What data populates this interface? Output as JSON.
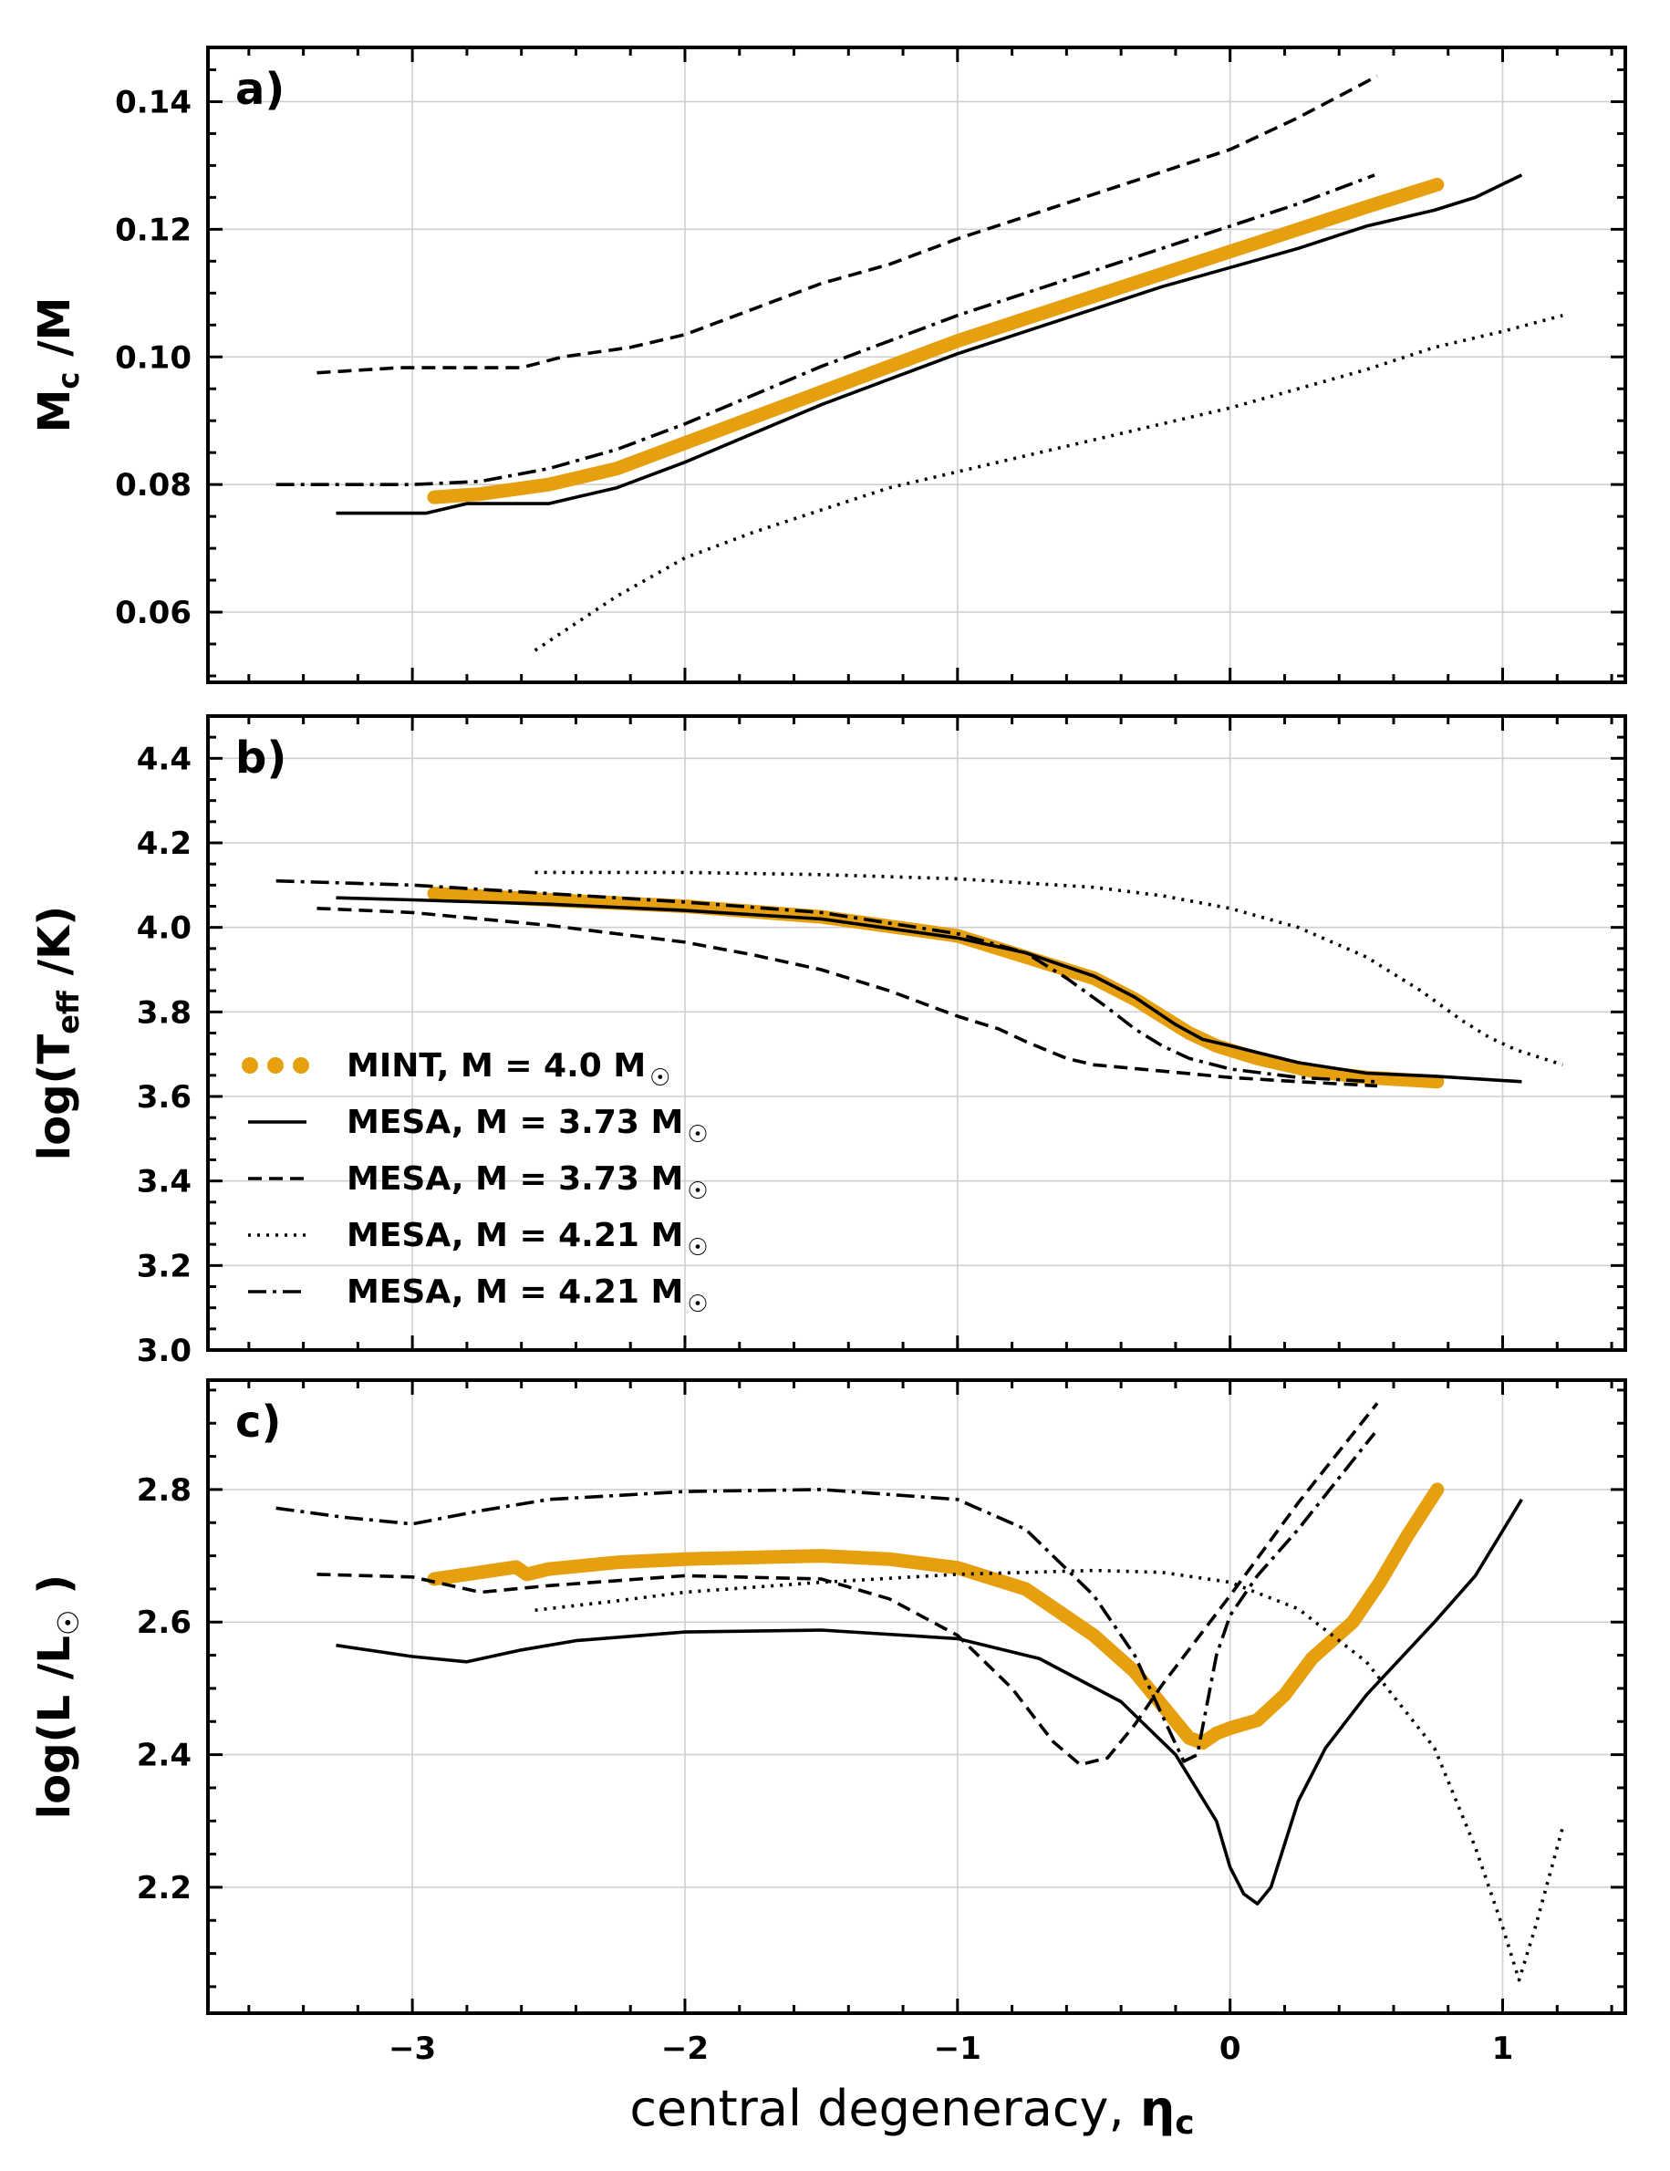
{
  "figure": {
    "xlabel": "central degeneracy, ",
    "xlabel_symbol": "η",
    "xlabel_sub": "c"
  },
  "chart_data": [
    {
      "type": "line",
      "id": "a",
      "panel_label": "a)",
      "ylabel": {
        "main": "M",
        "sub": "c",
        "tail": " /M"
      },
      "xlim": [
        -3.75,
        1.45
      ],
      "ylim": [
        0.049,
        0.1485
      ],
      "xticks": [
        -3,
        -2,
        -1,
        0,
        1
      ],
      "xticklabels": [
        "−3",
        "−2",
        "−1",
        "0",
        "1"
      ],
      "show_xticklabels": false,
      "yticks": [
        0.06,
        0.08,
        0.1,
        0.12,
        0.14
      ],
      "yticklabels": [
        "0.06",
        "0.08",
        "0.10",
        "0.12",
        "0.14"
      ],
      "grid": true,
      "series": [
        {
          "style": "mint",
          "x": [
            -2.92,
            -2.75,
            -2.5,
            -2.25,
            -2.0,
            -1.75,
            -1.5,
            -1.25,
            -1.0,
            -0.75,
            -0.5,
            -0.25,
            0.0,
            0.25,
            0.5,
            0.76
          ],
          "y": [
            0.078,
            0.0785,
            0.08,
            0.0825,
            0.0865,
            0.0905,
            0.0945,
            0.0985,
            0.1025,
            0.106,
            0.1095,
            0.113,
            0.1165,
            0.12,
            0.1235,
            0.127
          ]
        },
        {
          "style": "solid",
          "x": [
            -3.28,
            -2.95,
            -2.8,
            -2.5,
            -2.25,
            -2.0,
            -1.75,
            -1.5,
            -1.25,
            -1.0,
            -0.75,
            -0.5,
            -0.25,
            0.0,
            0.25,
            0.5,
            0.75,
            0.9,
            1.07
          ],
          "y": [
            0.0755,
            0.0755,
            0.077,
            0.077,
            0.0795,
            0.0835,
            0.088,
            0.0925,
            0.0965,
            0.1005,
            0.104,
            0.1075,
            0.111,
            0.114,
            0.117,
            0.1205,
            0.123,
            0.125,
            0.1285
          ]
        },
        {
          "style": "dashed",
          "x": [
            -3.35,
            -3.05,
            -2.6,
            -2.45,
            -2.2,
            -2.0,
            -1.75,
            -1.5,
            -1.25,
            -1.0,
            -0.75,
            -0.5,
            -0.25,
            0.0,
            0.25,
            0.54
          ],
          "y": [
            0.0975,
            0.0983,
            0.0983,
            0.1,
            0.1015,
            0.1035,
            0.1075,
            0.1115,
            0.1145,
            0.1185,
            0.122,
            0.1255,
            0.129,
            0.1325,
            0.1375,
            0.144
          ]
        },
        {
          "style": "dotted",
          "x": [
            -2.55,
            -2.25,
            -2.0,
            -1.75,
            -1.5,
            -1.25,
            -1.0,
            -0.75,
            -0.5,
            -0.25,
            0.0,
            0.25,
            0.5,
            0.75,
            1.0,
            1.22
          ],
          "y": [
            0.054,
            0.0625,
            0.0685,
            0.0725,
            0.076,
            0.0795,
            0.082,
            0.0845,
            0.087,
            0.0895,
            0.092,
            0.095,
            0.098,
            0.1015,
            0.104,
            0.1065
          ]
        },
        {
          "style": "dashdot",
          "x": [
            -3.5,
            -3.0,
            -2.75,
            -2.5,
            -2.25,
            -2.0,
            -1.75,
            -1.5,
            -1.25,
            -1.0,
            -0.75,
            -0.5,
            -0.25,
            0.0,
            0.25,
            0.53
          ],
          "y": [
            0.08,
            0.08,
            0.0805,
            0.0825,
            0.0855,
            0.0895,
            0.094,
            0.0985,
            0.1025,
            0.1065,
            0.11,
            0.1135,
            0.117,
            0.1205,
            0.124,
            0.1285
          ]
        }
      ]
    },
    {
      "type": "line",
      "id": "b",
      "panel_label": "b)",
      "ylabel": {
        "main": "log(T",
        "sub": "eff",
        "tail": " /K)"
      },
      "xlim": [
        -3.75,
        1.45
      ],
      "ylim": [
        3.0,
        4.5
      ],
      "xticks": [
        -3,
        -2,
        -1,
        0,
        1
      ],
      "xticklabels": [
        "−3",
        "−2",
        "−1",
        "0",
        "1"
      ],
      "show_xticklabels": false,
      "yticks": [
        3.0,
        3.2,
        3.4,
        3.6,
        3.8,
        4.0,
        4.2,
        4.4
      ],
      "yticklabels": [
        "3.0",
        "3.2",
        "3.4",
        "3.6",
        "3.8",
        "4.0",
        "4.2",
        "4.4"
      ],
      "grid": true,
      "legend": {
        "position": "lower-left",
        "entries": [
          {
            "style": "mint",
            "label": "MINT, M = 4.0 M",
            "sym": "☉"
          },
          {
            "style": "solid",
            "label": "MESA, M = 3.73 M",
            "sym": "☉"
          },
          {
            "style": "dashed",
            "label": "MESA, M = 3.73 M",
            "sym": "☉"
          },
          {
            "style": "dotted",
            "label": "MESA, M = 4.21 M",
            "sym": "☉"
          },
          {
            "style": "dashdot",
            "label": "MESA, M = 4.21 M",
            "sym": "☉"
          }
        ]
      },
      "series": [
        {
          "style": "mint",
          "x": [
            -2.92,
            -2.5,
            -2.0,
            -1.5,
            -1.0,
            -0.75,
            -0.5,
            -0.35,
            -0.25,
            -0.15,
            -0.05,
            0.1,
            0.3,
            0.5,
            0.76
          ],
          "y": [
            4.08,
            4.065,
            4.05,
            4.025,
            3.98,
            3.93,
            3.88,
            3.83,
            3.79,
            3.75,
            3.72,
            3.69,
            3.66,
            3.645,
            3.635
          ]
        },
        {
          "style": "solid",
          "x": [
            -3.28,
            -3.0,
            -2.5,
            -2.0,
            -1.5,
            -1.0,
            -0.75,
            -0.5,
            -0.35,
            -0.2,
            -0.1,
            0.0,
            0.25,
            0.5,
            0.75,
            1.07
          ],
          "y": [
            4.07,
            4.065,
            4.055,
            4.04,
            4.02,
            3.975,
            3.94,
            3.885,
            3.835,
            3.77,
            3.735,
            3.72,
            3.68,
            3.655,
            3.648,
            3.635
          ]
        },
        {
          "style": "dashed",
          "x": [
            -3.35,
            -3.0,
            -2.5,
            -2.0,
            -1.75,
            -1.5,
            -1.25,
            -1.0,
            -0.85,
            -0.75,
            -0.6,
            -0.5,
            -0.25,
            0.0,
            0.25,
            0.54
          ],
          "y": [
            4.045,
            4.035,
            4.005,
            3.965,
            3.935,
            3.9,
            3.85,
            3.79,
            3.76,
            3.73,
            3.69,
            3.675,
            3.66,
            3.645,
            3.635,
            3.625
          ]
        },
        {
          "style": "dotted",
          "x": [
            -2.55,
            -2.0,
            -1.5,
            -1.0,
            -0.5,
            -0.25,
            0.0,
            0.25,
            0.5,
            0.7,
            0.85,
            0.95,
            1.05,
            1.22
          ],
          "y": [
            4.13,
            4.13,
            4.125,
            4.115,
            4.095,
            4.075,
            4.045,
            4.0,
            3.93,
            3.85,
            3.78,
            3.74,
            3.71,
            3.675
          ]
        },
        {
          "style": "dashdot",
          "x": [
            -3.5,
            -3.0,
            -2.5,
            -2.0,
            -1.5,
            -1.0,
            -0.75,
            -0.6,
            -0.45,
            -0.35,
            -0.25,
            -0.15,
            0.0,
            0.25,
            0.53
          ],
          "y": [
            4.11,
            4.1,
            4.08,
            4.06,
            4.035,
            3.985,
            3.94,
            3.88,
            3.81,
            3.76,
            3.72,
            3.69,
            3.665,
            3.645,
            3.635
          ]
        }
      ]
    },
    {
      "type": "line",
      "id": "c",
      "panel_label": "c)",
      "ylabel": {
        "main": "log(L /L",
        "sym": "☉",
        "tail": " )"
      },
      "xlim": [
        -3.75,
        1.45
      ],
      "ylim": [
        2.01,
        2.965
      ],
      "xticks": [
        -3,
        -2,
        -1,
        0,
        1
      ],
      "xticklabels": [
        "−3",
        "−2",
        "−1",
        "0",
        "1"
      ],
      "show_xticklabels": true,
      "yticks": [
        2.2,
        2.4,
        2.6,
        2.8
      ],
      "yticklabels": [
        "2.2",
        "2.4",
        "2.6",
        "2.8"
      ],
      "grid": true,
      "series": [
        {
          "style": "mint",
          "x": [
            -2.92,
            -2.75,
            -2.62,
            -2.58,
            -2.5,
            -2.25,
            -2.0,
            -1.5,
            -1.25,
            -1.0,
            -0.75,
            -0.5,
            -0.35,
            -0.25,
            -0.15,
            -0.1,
            -0.05,
            0.0,
            0.1,
            0.2,
            0.3,
            0.45,
            0.55,
            0.65,
            0.76
          ],
          "y": [
            2.665,
            2.675,
            2.683,
            2.672,
            2.68,
            2.69,
            2.695,
            2.7,
            2.695,
            2.682,
            2.65,
            2.58,
            2.525,
            2.475,
            2.425,
            2.418,
            2.432,
            2.44,
            2.452,
            2.49,
            2.545,
            2.6,
            2.66,
            2.73,
            2.8
          ]
        },
        {
          "style": "solid",
          "x": [
            -3.28,
            -3.0,
            -2.8,
            -2.6,
            -2.4,
            -2.0,
            -1.5,
            -1.0,
            -0.7,
            -0.4,
            -0.2,
            -0.05,
            0.0,
            0.05,
            0.1,
            0.15,
            0.25,
            0.35,
            0.5,
            0.75,
            0.9,
            1.07
          ],
          "y": [
            2.565,
            2.548,
            2.54,
            2.558,
            2.572,
            2.585,
            2.588,
            2.575,
            2.545,
            2.48,
            2.4,
            2.3,
            2.23,
            2.19,
            2.175,
            2.2,
            2.33,
            2.41,
            2.49,
            2.6,
            2.67,
            2.785
          ]
        },
        {
          "style": "dashed",
          "x": [
            -3.35,
            -3.0,
            -2.75,
            -2.5,
            -2.0,
            -1.5,
            -1.25,
            -1.0,
            -0.8,
            -0.65,
            -0.55,
            -0.45,
            -0.35,
            -0.25,
            0.0,
            0.25,
            0.54
          ],
          "y": [
            2.672,
            2.668,
            2.645,
            2.655,
            2.67,
            2.665,
            2.635,
            2.58,
            2.5,
            2.42,
            2.385,
            2.395,
            2.445,
            2.505,
            2.64,
            2.78,
            2.93
          ]
        },
        {
          "style": "dotted",
          "x": [
            -2.55,
            -2.25,
            -2.0,
            -1.5,
            -1.0,
            -0.5,
            -0.25,
            0.0,
            0.25,
            0.5,
            0.75,
            0.9,
            1.0,
            1.06,
            1.12,
            1.22
          ],
          "y": [
            2.618,
            2.632,
            2.645,
            2.66,
            2.672,
            2.678,
            2.675,
            2.66,
            2.62,
            2.54,
            2.41,
            2.26,
            2.14,
            2.06,
            2.14,
            2.29
          ]
        },
        {
          "style": "dashdot",
          "x": [
            -3.5,
            -3.25,
            -3.0,
            -2.75,
            -2.5,
            -2.0,
            -1.5,
            -1.0,
            -0.75,
            -0.5,
            -0.35,
            -0.25,
            -0.17,
            -0.12,
            -0.05,
            0.0,
            0.1,
            0.25,
            0.53
          ],
          "y": [
            2.772,
            2.758,
            2.748,
            2.768,
            2.785,
            2.797,
            2.8,
            2.785,
            2.74,
            2.64,
            2.55,
            2.46,
            2.39,
            2.4,
            2.55,
            2.61,
            2.67,
            2.74,
            2.885
          ]
        }
      ]
    }
  ]
}
